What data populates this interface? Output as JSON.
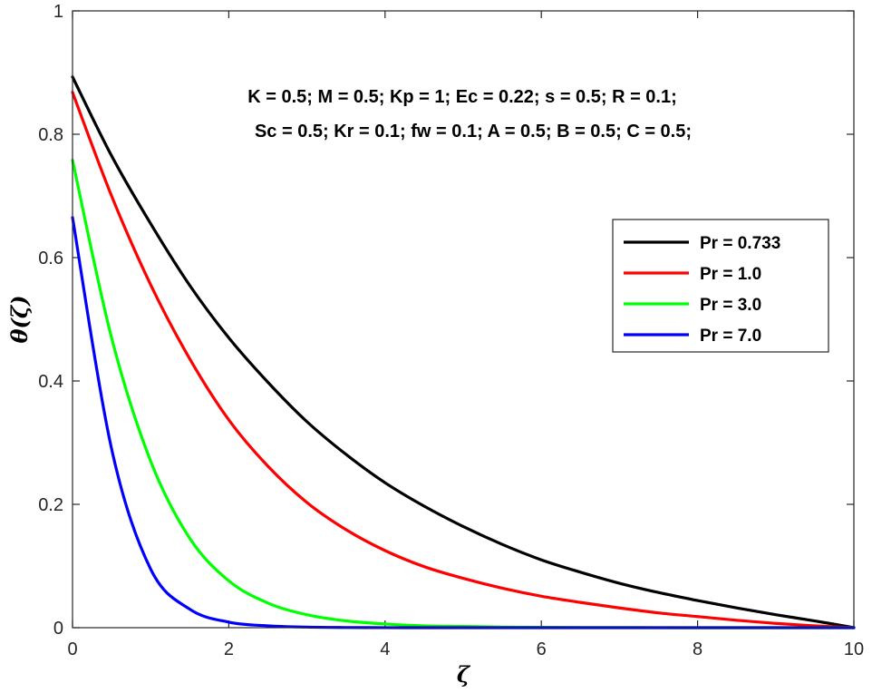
{
  "chart_data": {
    "type": "line",
    "title": "",
    "xlabel": "ζ",
    "ylabel": "θ(ζ)",
    "xlim": [
      0,
      10
    ],
    "ylim": [
      0,
      1
    ],
    "xticks": [
      0,
      2,
      4,
      6,
      8,
      10
    ],
    "yticks": [
      0,
      0.2,
      0.4,
      0.6,
      0.8,
      1
    ],
    "xtick_labels": [
      "0",
      "2",
      "4",
      "6",
      "8",
      "10"
    ],
    "ytick_labels": [
      "0",
      "0.2",
      "0.4",
      "0.6",
      "0.8",
      "1"
    ],
    "grid": false,
    "legend_position": "right",
    "annotations": [
      "K = 0.5; M = 0.5; Kp = 1; Ec = 0.22; s = 0.5; R = 0.1;",
      "Sc = 0.5; Kr = 0.1; fw = 0.1; A = 0.5; B = 0.5; C = 0.5;"
    ],
    "x": [
      0,
      0.5,
      1,
      1.5,
      2,
      2.5,
      3,
      3.5,
      4,
      4.5,
      5,
      5.5,
      6,
      6.5,
      7,
      7.5,
      8,
      8.5,
      9,
      9.5,
      10
    ],
    "series": [
      {
        "name": "Pr = 0.733",
        "color": "#000000",
        "values": [
          0.893,
          0.765,
          0.655,
          0.555,
          0.47,
          0.398,
          0.334,
          0.281,
          0.235,
          0.197,
          0.164,
          0.135,
          0.11,
          0.09,
          0.072,
          0.057,
          0.044,
          0.032,
          0.021,
          0.011,
          0.0
        ]
      },
      {
        "name": "Pr = 1.0",
        "color": "#ff0000",
        "values": [
          0.868,
          0.7,
          0.556,
          0.436,
          0.337,
          0.262,
          0.203,
          0.159,
          0.125,
          0.099,
          0.08,
          0.064,
          0.051,
          0.041,
          0.032,
          0.024,
          0.018,
          0.012,
          0.007,
          0.003,
          0.0
        ]
      },
      {
        "name": "Pr = 3.0",
        "color": "#00ff00",
        "values": [
          0.758,
          0.47,
          0.27,
          0.145,
          0.076,
          0.04,
          0.021,
          0.011,
          0.006,
          0.003,
          0.002,
          0.001,
          0.0005,
          0.0003,
          0.0002,
          0.0001,
          0.0,
          0.0,
          0.0,
          0.0,
          0.0
        ]
      },
      {
        "name": "Pr = 7.0",
        "color": "#0000ff",
        "values": [
          0.665,
          0.29,
          0.095,
          0.03,
          0.009,
          0.003,
          0.001,
          0.0003,
          0.0001,
          0.0,
          0.0,
          0.0,
          0.0,
          0.0,
          0.0,
          0.0,
          0.0,
          0.0,
          0.0,
          0.0,
          0.0
        ]
      }
    ]
  }
}
